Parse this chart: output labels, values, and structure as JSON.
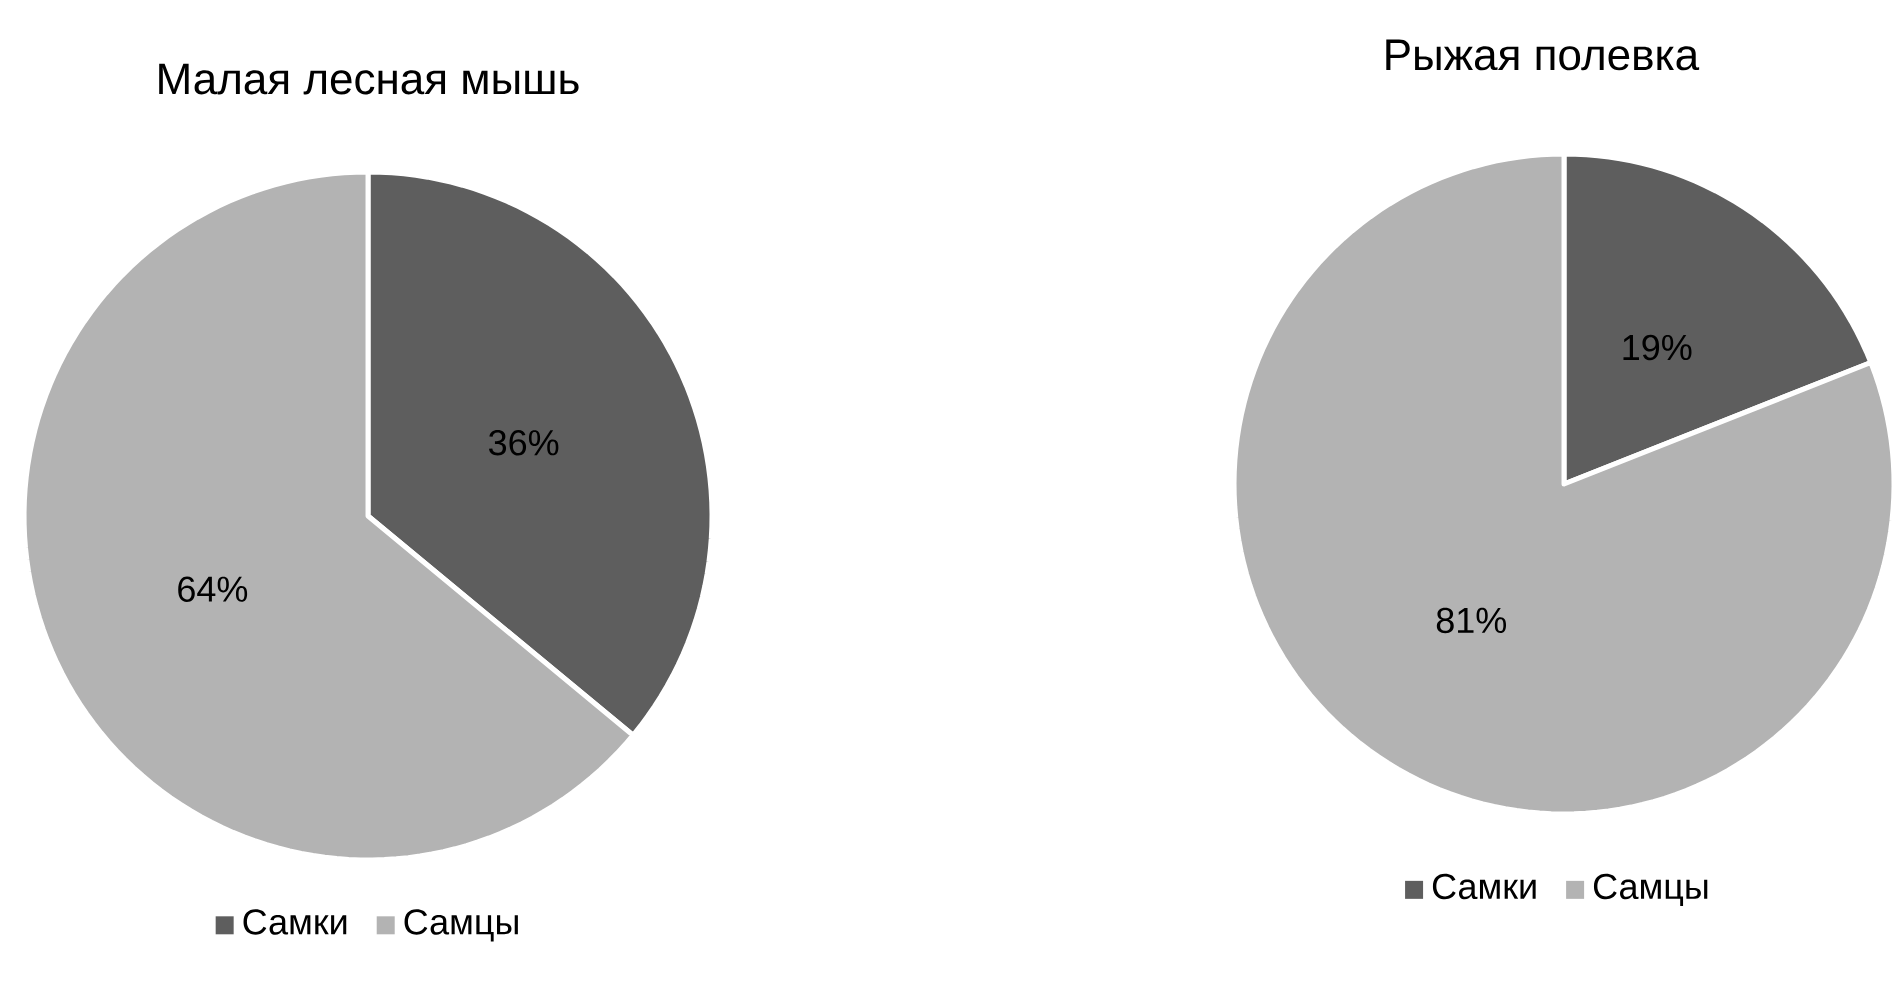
{
  "chart_data": [
    {
      "type": "pie",
      "title": "Малая лесная мышь",
      "categories": [
        "Самки",
        "Самцы"
      ],
      "values": [
        36,
        64
      ],
      "colors": [
        "#5e5e5e",
        "#b3b3b3"
      ],
      "value_labels": [
        "36%",
        "64%"
      ],
      "legend": "bottom"
    },
    {
      "type": "pie",
      "title": "Рыжая полевка",
      "categories": [
        "Самки",
        "Самцы"
      ],
      "values": [
        19,
        81
      ],
      "colors": [
        "#5e5e5e",
        "#b3b3b3"
      ],
      "value_labels": [
        "19%",
        "81%"
      ],
      "legend": "bottom"
    }
  ]
}
